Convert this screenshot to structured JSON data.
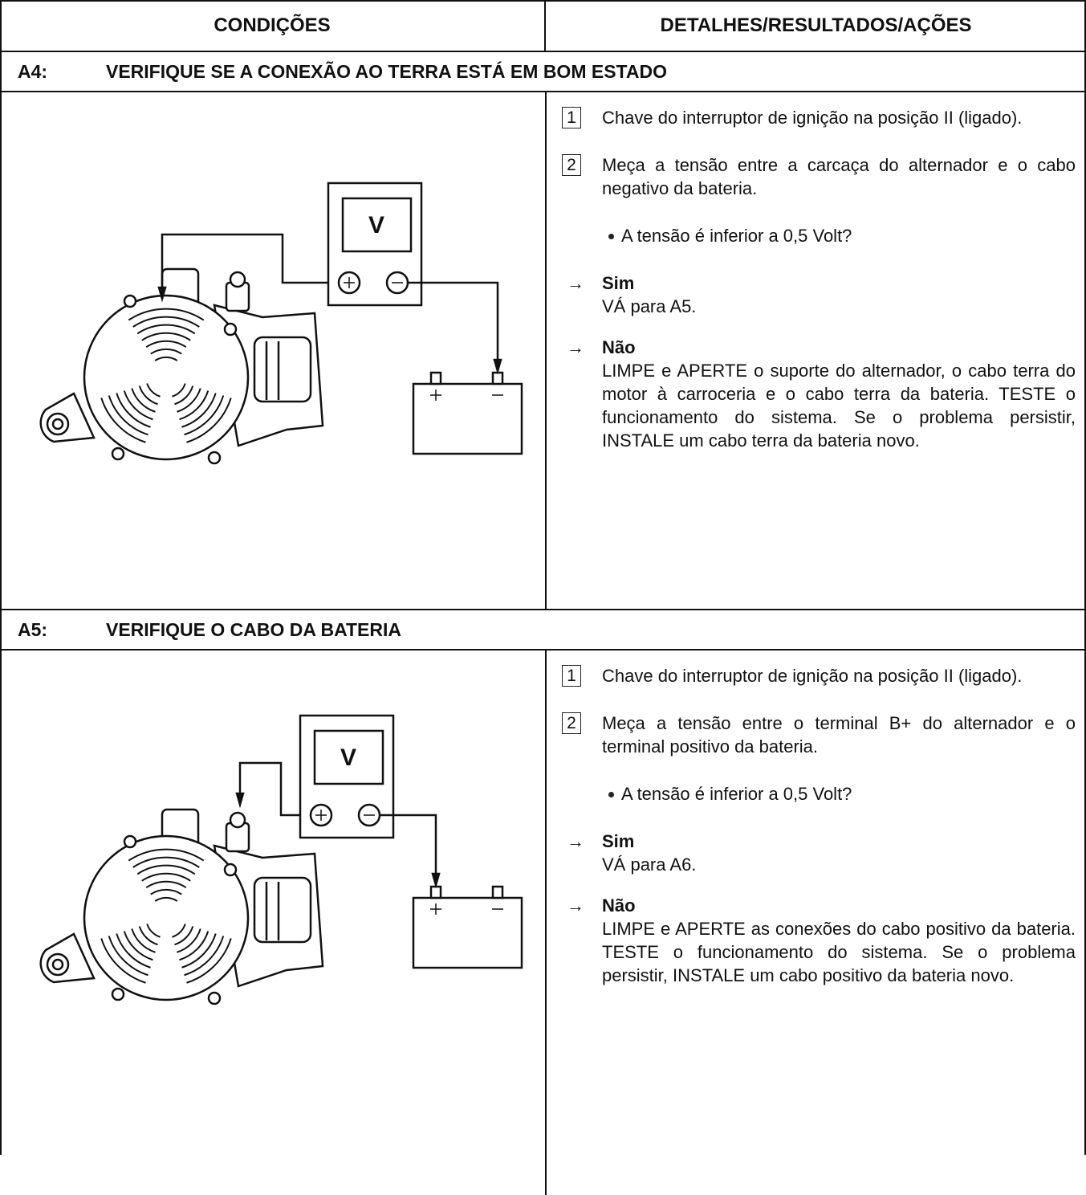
{
  "header": {
    "columns": [
      "CONDIÇÕES",
      "DETALHES/RESULTADOS/AÇÕES"
    ]
  },
  "sections": [
    {
      "code": "A4:",
      "title": "VERIFIQUE SE A CONEXÃO AO TERRA ESTÁ EM BOM ESTADO",
      "illustration": {
        "meter_label": "V"
      },
      "steps": [
        {
          "number": "1",
          "text": "Chave do interruptor de ignição na posição II (ligado)."
        },
        {
          "number": "2",
          "text": "Meça a tensão entre a carcaça do alternador e o cabo negativo da bateria."
        }
      ],
      "question": "A tensão é inferior a 0,5 Volt?",
      "outcomes": [
        {
          "marker": "→",
          "label": "Sim",
          "text": "VÁ para A5."
        },
        {
          "marker": "→",
          "label": "Não",
          "text": "LIMPE e APERTE o suporte do alternador, o cabo terra do motor à carroceria e o cabo terra da bateria. TESTE o funcionamento do sistema. Se o problema persistir, INSTALE um cabo terra da bateria novo."
        }
      ]
    },
    {
      "code": "A5:",
      "title": "VERIFIQUE O CABO DA BATERIA",
      "illustration": {
        "meter_label": "V"
      },
      "steps": [
        {
          "number": "1",
          "text": "Chave do interruptor de ignição na posição II (ligado)."
        },
        {
          "number": "2",
          "text": "Meça a tensão entre o terminal B+ do alternador e o terminal positivo da bateria."
        }
      ],
      "question": "A tensão é inferior a 0,5 Volt?",
      "outcomes": [
        {
          "marker": "→",
          "label": "Sim",
          "text": "VÁ para A6."
        },
        {
          "marker": "→",
          "label": "Não",
          "text": "LIMPE e APERTE as conexões do cabo positivo da bateria. TESTE o funcionamento do sistema. Se o problema persistir, INSTALE um cabo positivo da bateria novo."
        }
      ]
    }
  ]
}
